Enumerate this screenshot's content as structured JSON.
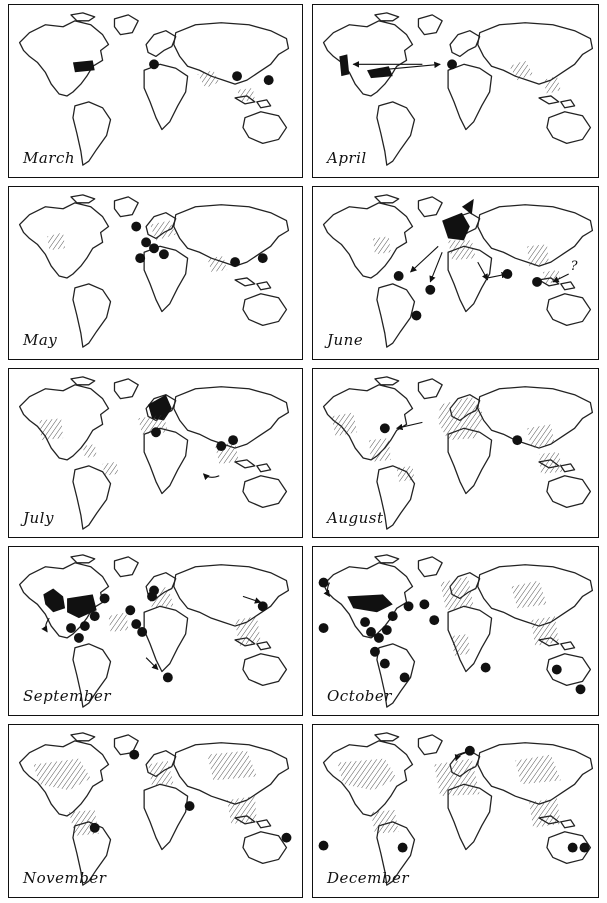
{
  "panels": [
    {
      "month": "March"
    },
    {
      "month": "April"
    },
    {
      "month": "May"
    },
    {
      "month": "June"
    },
    {
      "month": "July"
    },
    {
      "month": "August"
    },
    {
      "month": "September"
    },
    {
      "month": "October"
    },
    {
      "month": "November"
    },
    {
      "month": "December"
    }
  ],
  "question_mark": "?"
}
